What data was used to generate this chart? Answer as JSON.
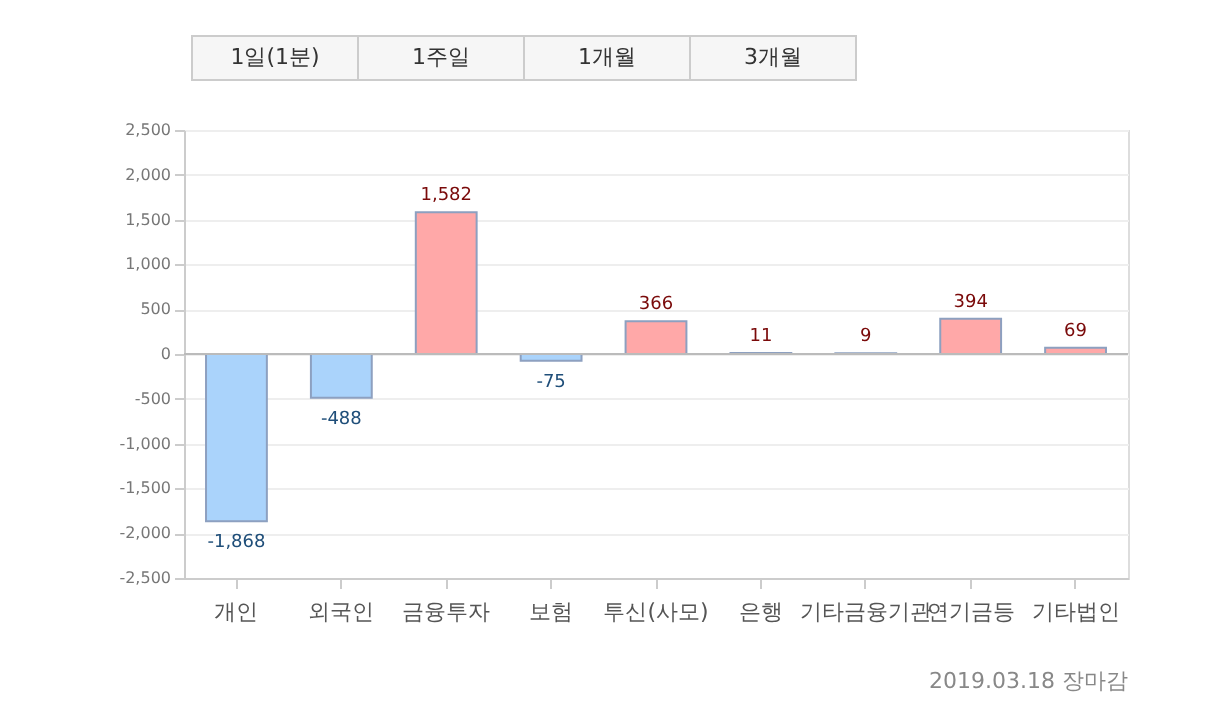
{
  "chart_data": {
    "type": "bar",
    "categories": [
      "개인",
      "외국인",
      "금융투자",
      "보험",
      "투신(사모)",
      "은행",
      "기타금융기관",
      "연기금등",
      "기타법인"
    ],
    "values": [
      -1868,
      -488,
      1582,
      -75,
      366,
      11,
      9,
      394,
      69
    ],
    "colors": [
      "#aad3fb",
      "#aad3fb",
      "#ffa8a8",
      "#aad3fb",
      "#ffa8a8",
      "#ffa8a8",
      "#ffa8a8",
      "#ffa8a8",
      "#ffa8a8"
    ],
    "value_labels": [
      "-1,868",
      "-488",
      "1,582",
      "-75",
      "366",
      "11",
      "9",
      "394",
      "69"
    ],
    "data_labels": true,
    "ylim": [
      -2500,
      2500
    ],
    "yticks": [
      {
        "value": -2500,
        "label": "-2,500"
      },
      {
        "value": -2000,
        "label": "-2,000"
      },
      {
        "value": -1500,
        "label": "-1,500"
      },
      {
        "value": -1000,
        "label": "-1,000"
      },
      -500,
      0,
      500,
      {
        "value": 1000,
        "label": "1,000"
      },
      {
        "value": 1500,
        "label": "1,500"
      },
      {
        "value": 2000,
        "label": "2,000"
      },
      {
        "value": 2500,
        "label": "2,500"
      }
    ],
    "grid": "y",
    "ref_lines": [
      {
        "axis": "y",
        "value": 0,
        "color": "#bbbbbb"
      }
    ],
    "annotations": [
      "1일(1분)",
      "1주일",
      "1개월",
      "3개월",
      "2019.03.18 장마감"
    ]
  }
}
